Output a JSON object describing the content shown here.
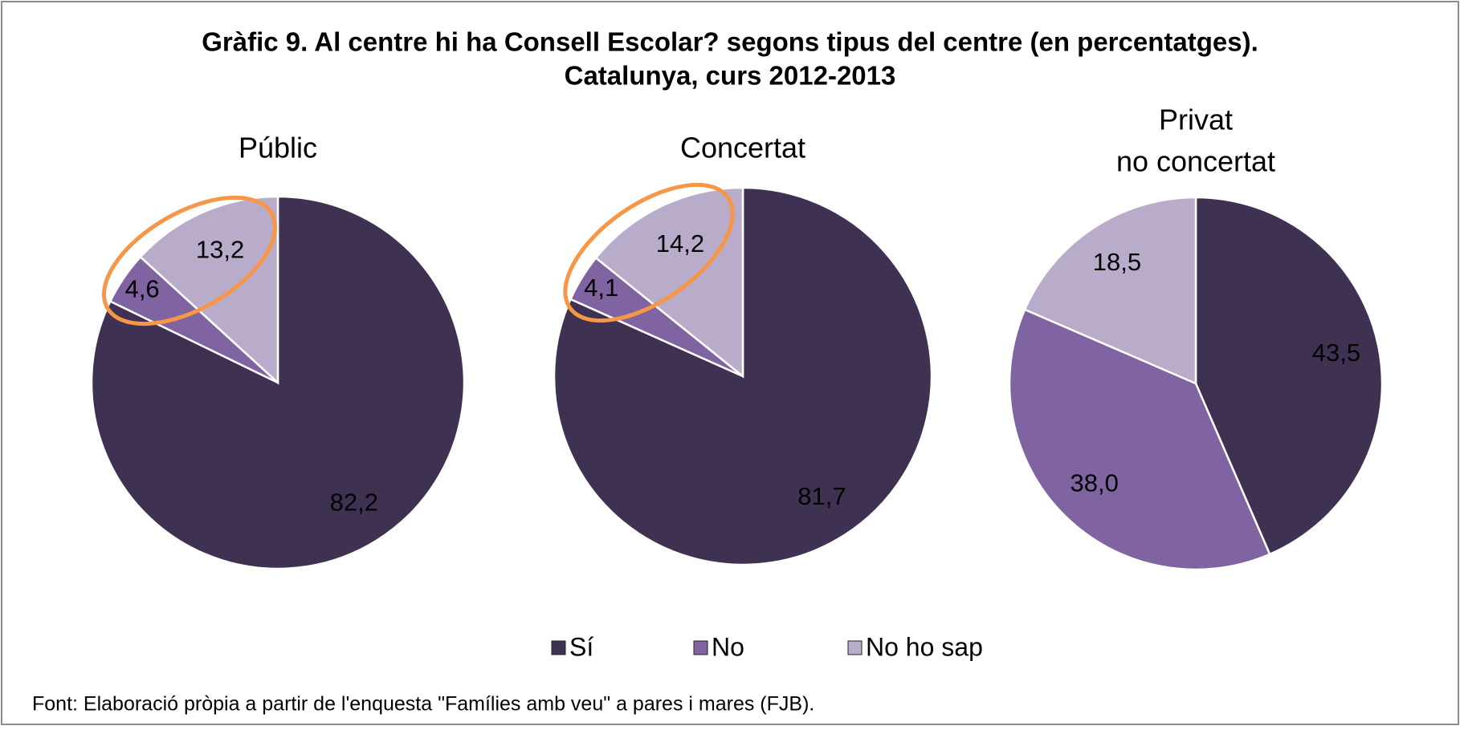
{
  "title": [
    "Gràfic 9. Al centre hi ha Consell Escolar? segons tipus del centre (en percentatges).",
    "Catalunya, curs 2012-2013"
  ],
  "legend": {
    "labels": [
      "Sí",
      "No",
      "No ho sap"
    ],
    "colors": [
      "#3f3151",
      "#8064a2",
      "#b9accb"
    ]
  },
  "source": "Font: Elaboració pròpia a partir de l'enquesta \"Famílies amb veu\" a pares i mares (FJB).",
  "chart_data": [
    {
      "type": "pie",
      "title": [
        "Públic"
      ],
      "values": [
        82.2,
        4.6,
        13.2
      ],
      "value_labels": [
        "82,2",
        "4,6",
        "13,2"
      ]
    },
    {
      "type": "pie",
      "title": [
        "Concertat"
      ],
      "values": [
        81.7,
        4.1,
        14.2
      ],
      "value_labels": [
        "81,7",
        "4,1",
        "14,2"
      ]
    },
    {
      "type": "pie",
      "title": [
        "Privat",
        "no concertat"
      ],
      "values": [
        43.5,
        38.0,
        18.5
      ],
      "value_labels": [
        "43,5",
        "38,0",
        "18,5"
      ]
    }
  ]
}
